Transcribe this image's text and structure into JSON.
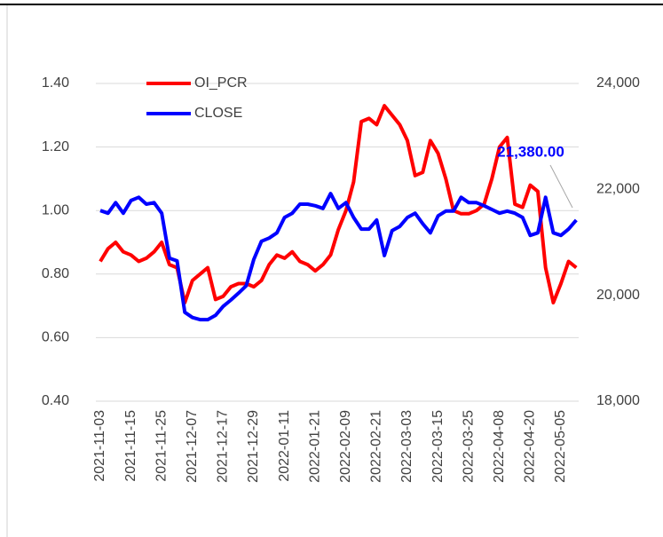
{
  "chart_data": {
    "type": "line",
    "categories": [
      "2021-11-03",
      null,
      null,
      null,
      "2021-11-15",
      null,
      null,
      null,
      "2021-11-25",
      null,
      null,
      null,
      "2021-12-07",
      null,
      null,
      null,
      "2021-12-17",
      null,
      null,
      null,
      "2021-12-29",
      null,
      null,
      null,
      "2022-01-11",
      null,
      null,
      null,
      "2022-01-21",
      null,
      null,
      null,
      "2022-02-09",
      null,
      null,
      null,
      "2022-02-21",
      null,
      null,
      null,
      "2022-03-03",
      null,
      null,
      null,
      "2022-03-15",
      null,
      null,
      null,
      "2022-03-25",
      null,
      null,
      null,
      "2022-04-08",
      null,
      null,
      null,
      "2022-04-20",
      null,
      null,
      null,
      "2022-05-05",
      null,
      null
    ],
    "series": [
      {
        "name": "OI_PCR",
        "color": "#ff0000",
        "values": [
          0.84,
          0.88,
          0.9,
          0.87,
          0.86,
          0.84,
          0.85,
          0.87,
          0.9,
          0.83,
          0.82,
          0.71,
          0.78,
          0.8,
          0.82,
          0.72,
          0.73,
          0.76,
          0.77,
          0.77,
          0.76,
          0.78,
          0.83,
          0.86,
          0.85,
          0.87,
          0.84,
          0.83,
          0.81,
          0.83,
          0.86,
          0.94,
          1.0,
          1.09,
          1.28,
          1.29,
          1.27,
          1.33,
          1.3,
          1.27,
          1.22,
          1.11,
          1.12,
          1.22,
          1.18,
          1.1,
          1.0,
          0.99,
          0.99,
          1.0,
          1.02,
          1.1,
          1.2,
          1.23,
          1.02,
          1.01,
          1.08,
          1.06,
          0.82,
          0.71,
          0.77,
          0.84,
          0.82
        ]
      },
      {
        "name": "CLOSE",
        "color": "#0000ff",
        "axis": "y2",
        "values": [
          21600,
          21550,
          21750,
          21550,
          21790,
          21850,
          21720,
          21750,
          21550,
          20700,
          20650,
          19680,
          19580,
          19540,
          19540,
          19620,
          19790,
          19910,
          20040,
          20180,
          20680,
          21020,
          21080,
          21180,
          21470,
          21550,
          21720,
          21720,
          21690,
          21640,
          21920,
          21640,
          21750,
          21470,
          21250,
          21250,
          21420,
          20750,
          21220,
          21300,
          21470,
          21550,
          21350,
          21180,
          21500,
          21590,
          21590,
          21850,
          21750,
          21750,
          21690,
          21620,
          21550,
          21590,
          21550,
          21470,
          21130,
          21180,
          21850,
          21180,
          21130,
          21250,
          21420
        ]
      }
    ],
    "ylim": [
      0.4,
      1.4
    ],
    "yticks": [
      {
        "value": 0.4,
        "label": "0.40"
      },
      {
        "value": 0.6,
        "label": "0.60"
      },
      {
        "value": 0.8,
        "label": "0.80"
      },
      {
        "value": 1.0,
        "label": "1.00"
      },
      {
        "value": 1.2,
        "label": "1.20"
      },
      {
        "value": 1.4,
        "label": "1.40"
      }
    ],
    "y2lim": [
      18000,
      24000
    ],
    "y2ticks": [
      {
        "value": 18000,
        "label": "18,000"
      },
      {
        "value": 20000,
        "label": "20,000"
      },
      {
        "value": 22000,
        "label": "22,000"
      },
      {
        "value": 24000,
        "label": "24,000"
      }
    ],
    "grid": true,
    "legend": "upper left",
    "annotation": "21,380.00"
  }
}
